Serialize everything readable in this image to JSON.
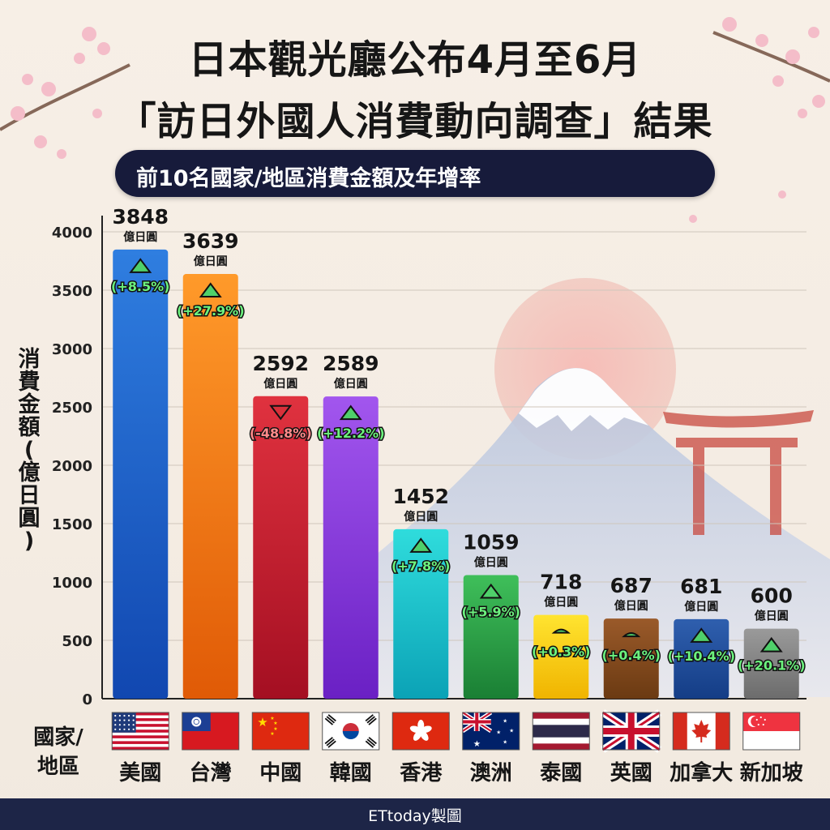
{
  "header": {
    "title_line1": "日本觀光廳公布4月至6月",
    "title_line2": "「訪日外國人消費動向調查」結果",
    "subtitle": "前10名國家/地區消費金額及年增率"
  },
  "footer": {
    "credit": "ETtoday製圖"
  },
  "colors": {
    "up_arrow": "#4fd06a",
    "down_arrow": "#d8303a",
    "footer_bg": "#1d2547",
    "pill_bg": "#171b3b"
  },
  "chart_data": {
    "type": "bar",
    "title": "前10名國家/地區消費金額及年增率",
    "ylabel": "消費金額(億日圓)",
    "xlabel": "國家/地區",
    "ylim": [
      0,
      4000
    ],
    "yticks": [
      0,
      500,
      1000,
      1500,
      2000,
      2500,
      3000,
      3500,
      4000
    ],
    "grid": true,
    "unit_label": "億日圓",
    "categories": [
      "美國",
      "台灣",
      "中國",
      "韓國",
      "香港",
      "澳洲",
      "泰國",
      "英國",
      "加拿大",
      "新加坡"
    ],
    "values": [
      3848,
      3639,
      2592,
      2589,
      1452,
      1059,
      718,
      687,
      681,
      600
    ],
    "growth_labels": [
      "(+8.5%)",
      "(+27.9%)",
      "(-48.8%)",
      "(+12.2%)",
      "(+7.8%)",
      "(+5.9%)",
      "(+0.3%)",
      "(+0.4%)",
      "(+10.4%)",
      "(+20.1%)"
    ],
    "growth_values": [
      8.5,
      27.9,
      -48.8,
      12.2,
      7.8,
      5.9,
      0.3,
      0.4,
      10.4,
      20.1
    ],
    "bar_colors": [
      [
        "#2f7ee0",
        "#1147b0"
      ],
      [
        "#ff9a2a",
        "#e05a06"
      ],
      [
        "#e0323f",
        "#a40f22"
      ],
      [
        "#a256ee",
        "#6a20c4"
      ],
      [
        "#2fdcdc",
        "#0ba2b6"
      ],
      [
        "#3fbf5a",
        "#1a7f34"
      ],
      [
        "#ffe430",
        "#f0b400"
      ],
      [
        "#9a5a2a",
        "#6b3a12"
      ],
      [
        "#2f5fae",
        "#143d86"
      ],
      [
        "#9a9a9a",
        "#6c6c6c"
      ]
    ],
    "flag_icons": [
      "usa-flag-icon",
      "taiwan-flag-icon",
      "china-flag-icon",
      "korea-flag-icon",
      "hongkong-flag-icon",
      "australia-flag-icon",
      "thailand-flag-icon",
      "uk-flag-icon",
      "canada-flag-icon",
      "singapore-flag-icon"
    ]
  }
}
